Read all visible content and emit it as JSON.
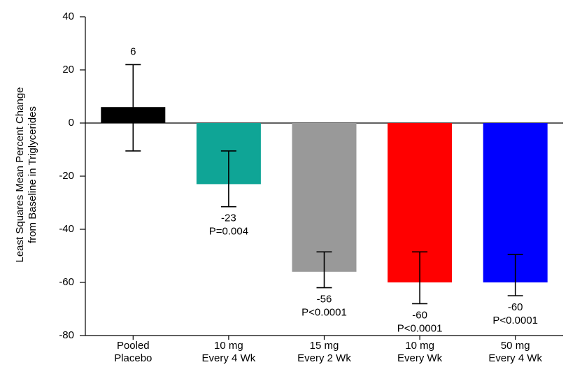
{
  "chart_data": {
    "type": "bar",
    "y_label": [
      "Least Squares Mean Percent Change",
      "from Baseline in Triglycerides"
    ],
    "categories": [
      [
        "Pooled",
        "Placebo"
      ],
      [
        "10 mg",
        "Every 4 Wk"
      ],
      [
        "15 mg",
        "Every 2 Wk"
      ],
      [
        "10 mg",
        "Every Wk"
      ],
      [
        "50 mg",
        "Every 4 Wk"
      ]
    ],
    "values": [
      6,
      -23,
      -56,
      -60,
      -60
    ],
    "error_high": [
      22,
      -10.5,
      -48.5,
      -48.5,
      -49.5
    ],
    "error_low": [
      -10.5,
      -31.5,
      -62,
      -68,
      -65
    ],
    "p_values": [
      null,
      "P=0.004",
      "P<0.0001",
      "P<0.0001",
      "P<0.0001"
    ],
    "colors": [
      "#000000",
      "#0fa596",
      "#999999",
      "#ff0000",
      "#0000ff"
    ],
    "ylim": [
      -80,
      40
    ],
    "yticks": [
      -80,
      -60,
      -40,
      -20,
      0,
      20,
      40
    ]
  }
}
